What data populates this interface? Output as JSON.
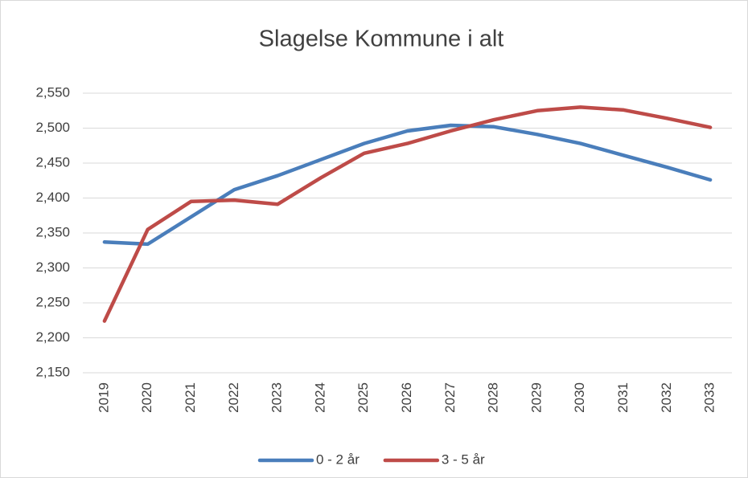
{
  "chart_data": {
    "type": "line",
    "title": "Slagelse Kommune i alt",
    "categories": [
      "2019",
      "2020",
      "2021",
      "2022",
      "2023",
      "2024",
      "2025",
      "2026",
      "2027",
      "2028",
      "2029",
      "2030",
      "2031",
      "2032",
      "2033"
    ],
    "series": [
      {
        "name": "0 - 2 år",
        "color": "#4a7ebb",
        "values": [
          2337,
          2334,
          2373,
          2412,
          2432,
          2455,
          2478,
          2496,
          2504,
          2502,
          2491,
          2478,
          2461,
          2444,
          2426
        ]
      },
      {
        "name": "3 - 5 år",
        "color": "#be4b48",
        "values": [
          2224,
          2355,
          2395,
          2397,
          2391,
          2429,
          2464,
          2478,
          2496,
          2512,
          2525,
          2530,
          2526,
          2514,
          2501
        ]
      }
    ],
    "ylim": [
      2150,
      2550
    ],
    "yticks": [
      {
        "value": 2150,
        "label": "2,150"
      },
      {
        "value": 2200,
        "label": "2,200"
      },
      {
        "value": 2250,
        "label": "2,250"
      },
      {
        "value": 2300,
        "label": "2,300"
      },
      {
        "value": 2350,
        "label": "2,350"
      },
      {
        "value": 2400,
        "label": "2,400"
      },
      {
        "value": 2450,
        "label": "2,450"
      },
      {
        "value": 2500,
        "label": "2,500"
      },
      {
        "value": 2550,
        "label": "2,550"
      }
    ],
    "grid": true,
    "legend": "bottom"
  }
}
